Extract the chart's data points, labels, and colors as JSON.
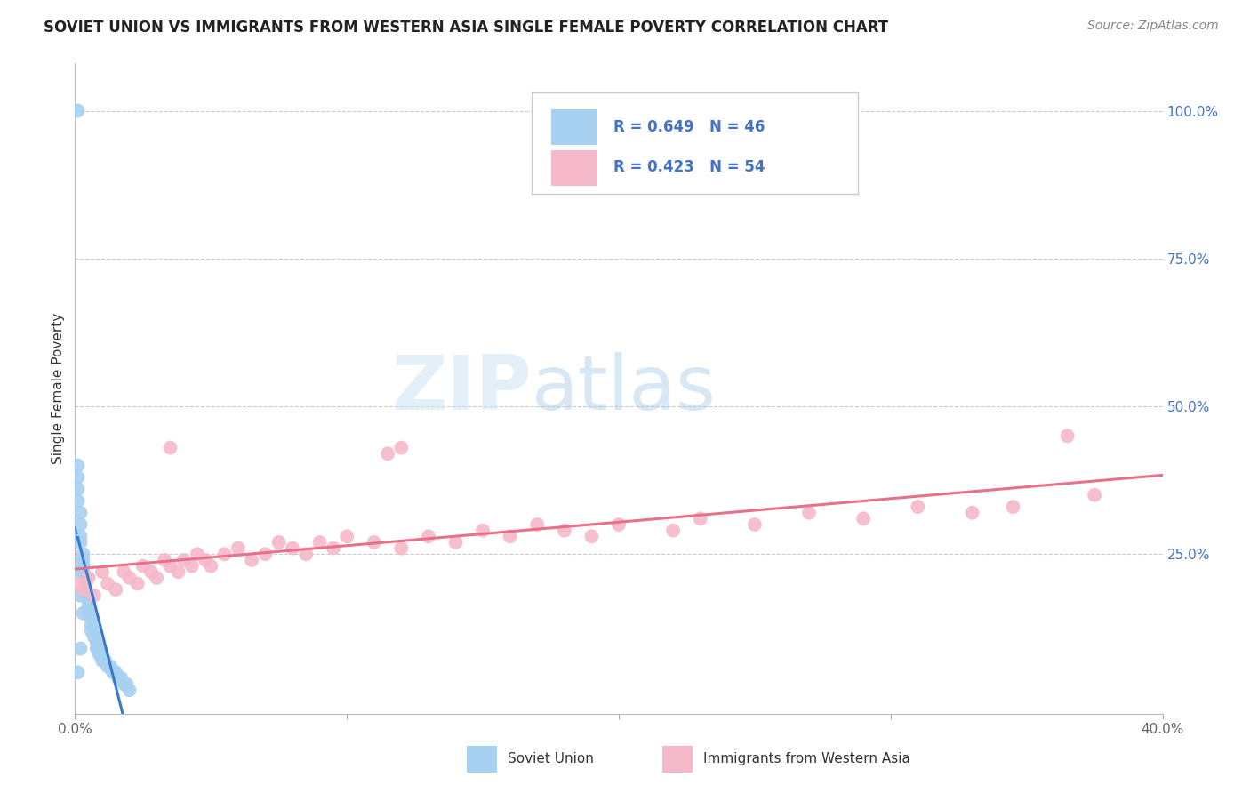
{
  "title": "SOVIET UNION VS IMMIGRANTS FROM WESTERN ASIA SINGLE FEMALE POVERTY CORRELATION CHART",
  "source": "Source: ZipAtlas.com",
  "ylabel": "Single Female Poverty",
  "xlim": [
    0.0,
    0.4
  ],
  "ylim": [
    -0.02,
    1.08
  ],
  "x_ticks": [
    0.0,
    0.1,
    0.2,
    0.3,
    0.4
  ],
  "x_tick_labels": [
    "0.0%",
    "",
    "",
    "",
    "40.0%"
  ],
  "y_ticks_right": [
    0.25,
    0.5,
    0.75,
    1.0
  ],
  "y_tick_labels_right": [
    "25.0%",
    "50.0%",
    "75.0%",
    "100.0%"
  ],
  "blue_color": "#a8d0f0",
  "blue_line_color": "#3a78c9",
  "pink_color": "#f5b8c8",
  "pink_line_color": "#e8708a",
  "watermark_zip": "ZIP",
  "watermark_atlas": "atlas",
  "blue_R": 0.649,
  "blue_N": 46,
  "pink_R": 0.423,
  "pink_N": 54,
  "legend_bottom1": "Soviet Union",
  "legend_bottom2": "Immigrants from Western Asia",
  "soviet_x": [
    0.001,
    0.001,
    0.001,
    0.001,
    0.001,
    0.002,
    0.002,
    0.002,
    0.002,
    0.003,
    0.003,
    0.003,
    0.003,
    0.004,
    0.004,
    0.004,
    0.004,
    0.005,
    0.005,
    0.005,
    0.006,
    0.006,
    0.006,
    0.007,
    0.007,
    0.008,
    0.008,
    0.009,
    0.009,
    0.01,
    0.01,
    0.011,
    0.012,
    0.013,
    0.014,
    0.015,
    0.016,
    0.017,
    0.018,
    0.019,
    0.02,
    0.001,
    0.002,
    0.003,
    0.002,
    0.001
  ],
  "soviet_y": [
    1.0,
    0.4,
    0.38,
    0.36,
    0.34,
    0.32,
    0.3,
    0.28,
    0.27,
    0.25,
    0.24,
    0.23,
    0.22,
    0.21,
    0.2,
    0.19,
    0.18,
    0.17,
    0.16,
    0.15,
    0.14,
    0.13,
    0.12,
    0.12,
    0.11,
    0.1,
    0.09,
    0.09,
    0.08,
    0.08,
    0.07,
    0.07,
    0.06,
    0.06,
    0.05,
    0.05,
    0.04,
    0.04,
    0.03,
    0.03,
    0.02,
    0.22,
    0.18,
    0.15,
    0.09,
    0.05
  ],
  "wa_x": [
    0.001,
    0.003,
    0.005,
    0.007,
    0.01,
    0.012,
    0.015,
    0.018,
    0.02,
    0.023,
    0.025,
    0.028,
    0.03,
    0.033,
    0.035,
    0.038,
    0.04,
    0.043,
    0.045,
    0.048,
    0.05,
    0.055,
    0.06,
    0.065,
    0.07,
    0.075,
    0.08,
    0.085,
    0.09,
    0.095,
    0.1,
    0.11,
    0.115,
    0.12,
    0.13,
    0.14,
    0.15,
    0.16,
    0.17,
    0.18,
    0.19,
    0.2,
    0.22,
    0.23,
    0.25,
    0.27,
    0.29,
    0.31,
    0.33,
    0.345,
    0.12,
    0.035,
    0.375,
    0.365
  ],
  "wa_y": [
    0.2,
    0.19,
    0.21,
    0.18,
    0.22,
    0.2,
    0.19,
    0.22,
    0.21,
    0.2,
    0.23,
    0.22,
    0.21,
    0.24,
    0.23,
    0.22,
    0.24,
    0.23,
    0.25,
    0.24,
    0.23,
    0.25,
    0.26,
    0.24,
    0.25,
    0.27,
    0.26,
    0.25,
    0.27,
    0.26,
    0.28,
    0.27,
    0.42,
    0.26,
    0.28,
    0.27,
    0.29,
    0.28,
    0.3,
    0.29,
    0.28,
    0.3,
    0.29,
    0.31,
    0.3,
    0.32,
    0.31,
    0.33,
    0.32,
    0.33,
    0.43,
    0.43,
    0.35,
    0.45
  ]
}
